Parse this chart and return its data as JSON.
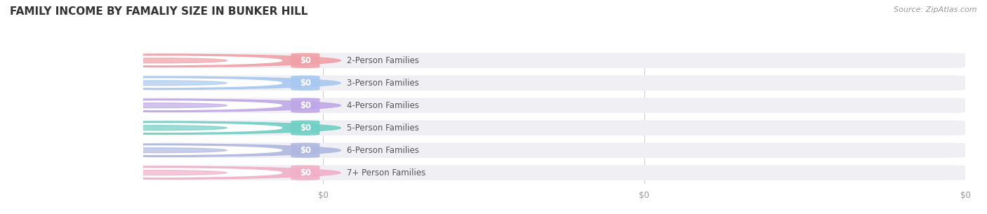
{
  "title": "FAMILY INCOME BY FAMALIY SIZE IN BUNKER HILL",
  "source_text": "Source: ZipAtlas.com",
  "categories": [
    "2-Person Families",
    "3-Person Families",
    "4-Person Families",
    "5-Person Families",
    "6-Person Families",
    "7+ Person Families"
  ],
  "values": [
    0,
    0,
    0,
    0,
    0,
    0
  ],
  "bar_colors": [
    "#f0a0a8",
    "#a8c8f0",
    "#c0a8e8",
    "#70cfc4",
    "#b0b8e0",
    "#f0b0c8"
  ],
  "bar_bg_color": "#f0f0f4",
  "background_color": "#ffffff",
  "title_fontsize": 11,
  "source_fontsize": 8,
  "label_fontsize": 8.5,
  "value_fontsize": 8.5
}
